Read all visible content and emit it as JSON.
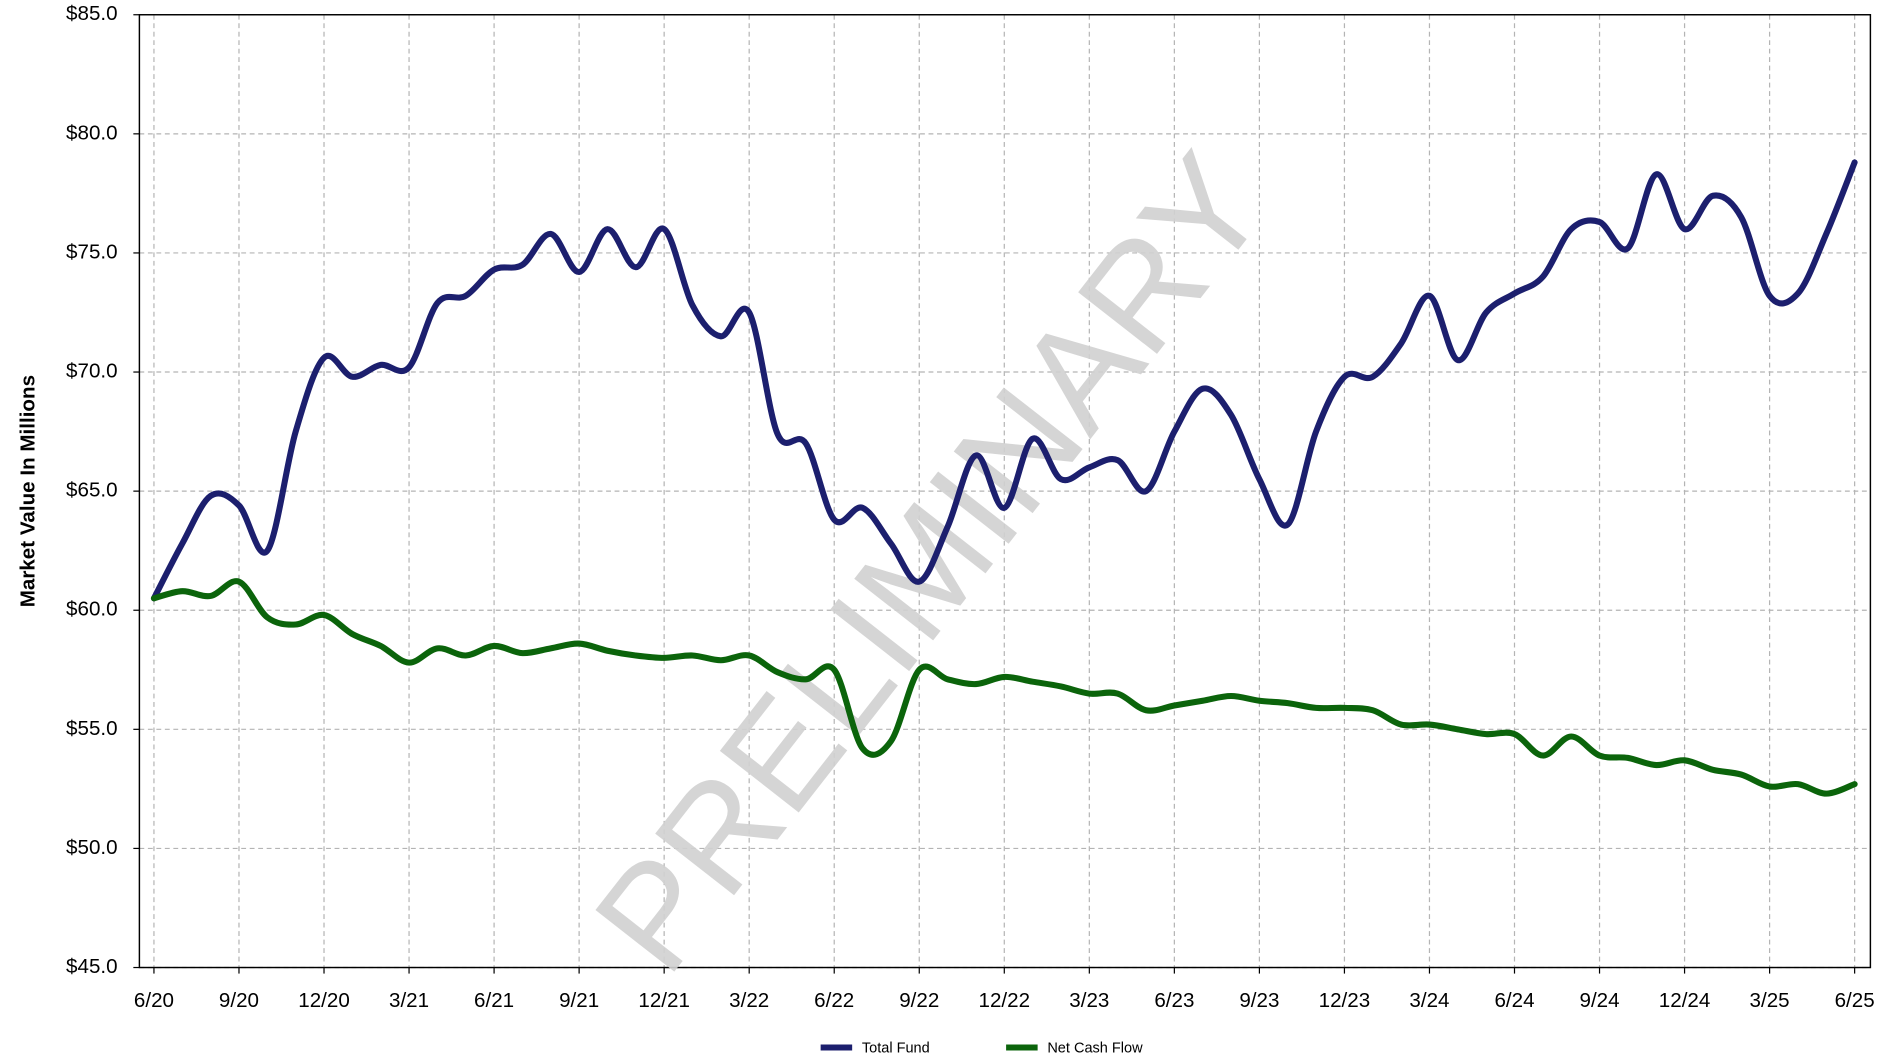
{
  "chart_data": {
    "type": "line",
    "y_label": "Market Value In Millions",
    "watermark": "PRELIMINARY",
    "categories": [
      "6/20",
      null,
      null,
      "9/20",
      null,
      null,
      "12/20",
      null,
      null,
      "3/21",
      null,
      null,
      "6/21",
      null,
      null,
      "9/21",
      null,
      null,
      "12/21",
      null,
      null,
      "3/22",
      null,
      null,
      "6/22",
      null,
      null,
      "9/22",
      null,
      null,
      "12/22",
      null,
      null,
      "3/23",
      null,
      null,
      "6/23",
      null,
      null,
      "9/23",
      null,
      null,
      "12/23",
      null,
      null,
      "3/24",
      null,
      null,
      "6/24",
      null,
      null,
      "9/24",
      null,
      null,
      "12/24",
      null,
      null,
      "3/25",
      null,
      null,
      "6/25"
    ],
    "series": [
      {
        "name": "Total Fund",
        "color": "#1c1f6e",
        "values": [
          60.5,
          62.8,
          64.8,
          64.4,
          62.5,
          67.5,
          70.6,
          69.8,
          70.3,
          70.2,
          72.9,
          73.2,
          74.3,
          74.5,
          75.8,
          74.2,
          76.0,
          74.4,
          76.0,
          72.8,
          71.5,
          72.5,
          67.4,
          67.0,
          63.8,
          64.3,
          62.8,
          61.2,
          63.5,
          66.5,
          64.3,
          67.2,
          65.5,
          66.0,
          66.3,
          65.0,
          67.5,
          69.3,
          68.2,
          65.5,
          63.6,
          67.5,
          69.8,
          69.8,
          71.2,
          73.2,
          70.5,
          72.5,
          73.3,
          74.0,
          76.0,
          76.3,
          75.2,
          78.3,
          76.0,
          77.4,
          76.5,
          73.2,
          73.3,
          75.8,
          78.8
        ]
      },
      {
        "name": "Net Cash Flow",
        "color": "#0b640b",
        "values": [
          60.5,
          60.8,
          60.6,
          61.2,
          59.7,
          59.4,
          59.8,
          59.0,
          58.5,
          57.8,
          58.4,
          58.1,
          58.5,
          58.2,
          58.4,
          58.6,
          58.3,
          58.1,
          58.0,
          58.1,
          57.9,
          58.1,
          57.4,
          57.1,
          57.5,
          54.2,
          54.5,
          57.5,
          57.1,
          56.9,
          57.2,
          57.0,
          56.8,
          56.5,
          56.5,
          55.8,
          56.0,
          56.2,
          56.4,
          56.2,
          56.1,
          55.9,
          55.9,
          55.8,
          55.2,
          55.2,
          55.0,
          54.8,
          54.8,
          53.9,
          54.7,
          53.9,
          53.8,
          53.5,
          53.7,
          53.3,
          53.1,
          52.6,
          52.7,
          52.3,
          52.7
        ]
      }
    ],
    "ylim": [
      45,
      85
    ],
    "yticks": [
      {
        "value": 45,
        "label": "$45.0"
      },
      {
        "value": 50,
        "label": "$50.0"
      },
      {
        "value": 55,
        "label": "$55.0"
      },
      {
        "value": 60,
        "label": "$60.0"
      },
      {
        "value": 65,
        "label": "$65.0"
      },
      {
        "value": 70,
        "label": "$70.0"
      },
      {
        "value": 75,
        "label": "$75.0"
      },
      {
        "value": 80,
        "label": "$80.0"
      },
      {
        "value": 85,
        "label": "$85.0"
      }
    ],
    "grid": true,
    "legend": "bottom"
  }
}
